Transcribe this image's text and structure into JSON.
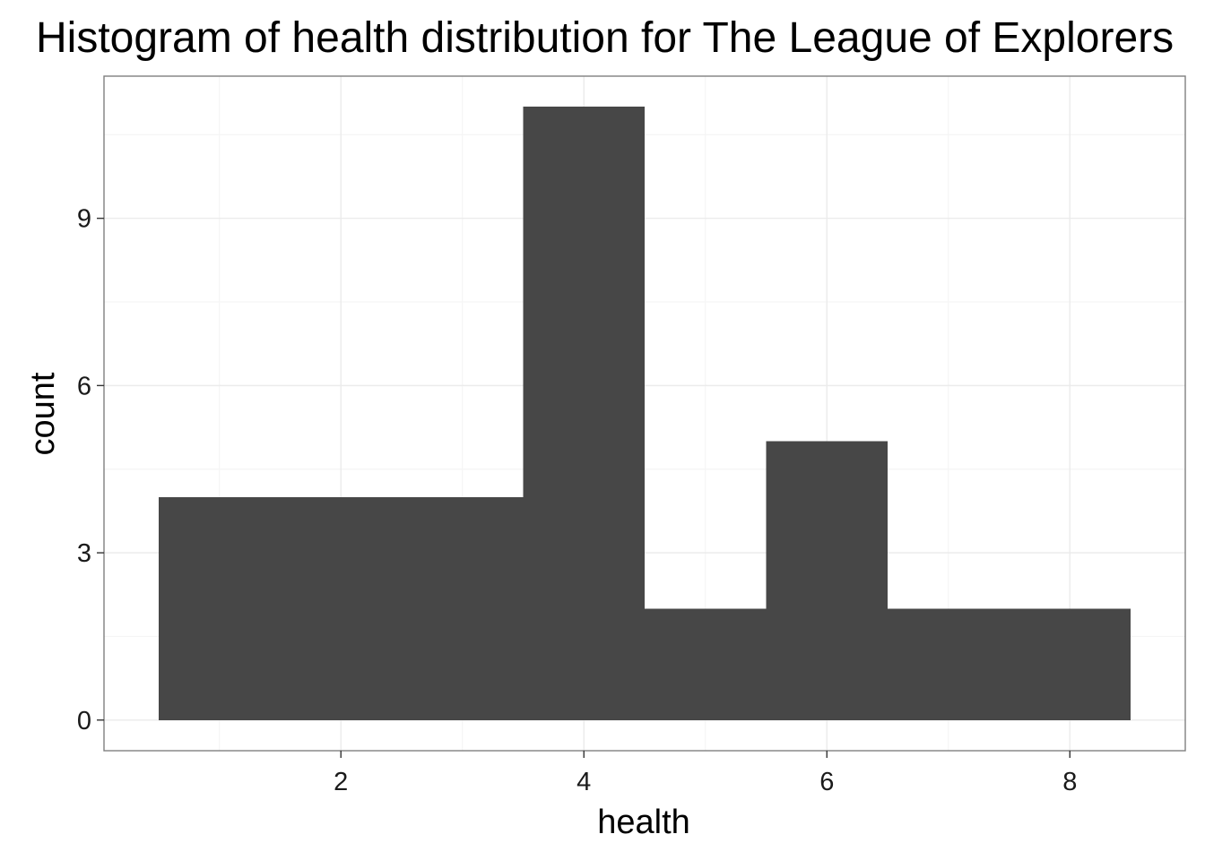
{
  "chart_data": {
    "type": "bar",
    "title": "Histogram of health distribution for The League of Explorers",
    "xlabel": "health",
    "ylabel": "count",
    "bin_width": 1,
    "bins": [
      {
        "center": 1,
        "count": 4
      },
      {
        "center": 2,
        "count": 4
      },
      {
        "center": 3,
        "count": 4
      },
      {
        "center": 4,
        "count": 11
      },
      {
        "center": 5,
        "count": 2
      },
      {
        "center": 6,
        "count": 5
      },
      {
        "center": 7,
        "count": 2
      },
      {
        "center": 8,
        "count": 2
      }
    ],
    "xlim": [
      0.05,
      8.95
    ],
    "ylim": [
      -0.55,
      11.55
    ],
    "x_ticks": [
      2,
      4,
      6,
      8
    ],
    "x_tick_labels": [
      "2",
      "4",
      "6",
      "8"
    ],
    "y_ticks": [
      0,
      3,
      6,
      9
    ],
    "y_tick_labels": [
      "0",
      "3",
      "6",
      "9"
    ],
    "grid": true,
    "colors": {
      "bar_fill": "#474747",
      "panel_border": "#7f7f7f",
      "major_grid": "#ebebeb",
      "minor_grid": "#f5f5f5"
    }
  }
}
